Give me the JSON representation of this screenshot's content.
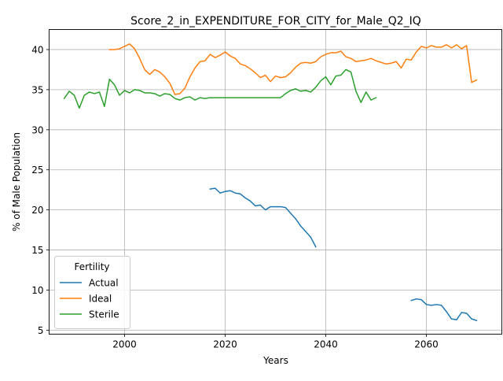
{
  "chart_data": {
    "type": "line",
    "title": "Score_2_in_EXPENDITURE_FOR_CITY_for_Male_Q2_IQ",
    "xlabel": "Years",
    "ylabel": "% of Male Population",
    "xlim": [
      1985,
      2075
    ],
    "ylim": [
      4.5,
      42.5
    ],
    "xticks": [
      2000,
      2020,
      2040,
      2060
    ],
    "yticks": [
      5,
      10,
      15,
      20,
      25,
      30,
      35,
      40
    ],
    "grid": true,
    "legend": {
      "title": "Fertility",
      "placement": "lower-left"
    },
    "series": [
      {
        "name": "Actual",
        "color": "#1f77b4",
        "x": [
          2017,
          2018,
          2019,
          2020,
          2021,
          2022,
          2023,
          2024,
          2025,
          2026,
          2027,
          2028,
          2029,
          2030,
          2031,
          2032,
          2033,
          2034,
          2035,
          2036,
          2037,
          2038,
          2057,
          2058,
          2059,
          2060,
          2061,
          2062,
          2063,
          2064,
          2065,
          2066,
          2067,
          2068,
          2069,
          2070
        ],
        "y": [
          22.6,
          22.7,
          22.1,
          22.3,
          22.4,
          22.1,
          22.0,
          21.5,
          21.1,
          20.5,
          20.6,
          20.0,
          20.4,
          20.4,
          20.4,
          20.3,
          19.6,
          18.9,
          18.0,
          17.3,
          16.6,
          15.4,
          8.7,
          8.9,
          8.8,
          8.2,
          8.1,
          8.2,
          8.1,
          7.3,
          6.4,
          6.3,
          7.2,
          7.1,
          6.4,
          6.2
        ]
      },
      {
        "name": "Ideal",
        "color": "#ff7f0e",
        "x": [
          1997,
          1998,
          1999,
          2000,
          2001,
          2002,
          2003,
          2004,
          2005,
          2006,
          2007,
          2008,
          2009,
          2010,
          2011,
          2012,
          2013,
          2014,
          2015,
          2016,
          2017,
          2018,
          2019,
          2020,
          2021,
          2022,
          2023,
          2024,
          2025,
          2026,
          2027,
          2028,
          2029,
          2030,
          2031,
          2032,
          2033,
          2034,
          2035,
          2036,
          2037,
          2038,
          2039,
          2040,
          2041,
          2042,
          2043,
          2044,
          2045,
          2046,
          2047,
          2048,
          2049,
          2050,
          2051,
          2052,
          2053,
          2054,
          2055,
          2056,
          2057,
          2058,
          2059,
          2060,
          2061,
          2062,
          2063,
          2064,
          2065,
          2066,
          2067,
          2068,
          2069,
          2070
        ],
        "y": [
          40.0,
          40.0,
          40.1,
          40.4,
          40.7,
          40.1,
          38.9,
          37.5,
          36.9,
          37.5,
          37.2,
          36.6,
          35.8,
          34.4,
          34.5,
          35.2,
          36.6,
          37.7,
          38.5,
          38.6,
          39.4,
          39.0,
          39.3,
          39.7,
          39.2,
          38.9,
          38.2,
          38.0,
          37.6,
          37.1,
          36.5,
          36.8,
          36.0,
          36.7,
          36.5,
          36.6,
          37.1,
          37.8,
          38.3,
          38.4,
          38.3,
          38.5,
          39.1,
          39.4,
          39.6,
          39.6,
          39.8,
          39.1,
          38.9,
          38.5,
          38.6,
          38.7,
          38.9,
          38.6,
          38.4,
          38.2,
          38.3,
          38.5,
          37.7,
          38.8,
          38.7,
          39.7,
          40.4,
          40.2,
          40.5,
          40.3,
          40.3,
          40.6,
          40.2,
          40.6,
          40.1,
          40.5,
          35.9,
          36.2
        ]
      },
      {
        "name": "Sterile",
        "color": "#2ca02c",
        "x": [
          1988,
          1989,
          1990,
          1991,
          1992,
          1993,
          1994,
          1995,
          1996,
          1997,
          1998,
          1999,
          2000,
          2001,
          2002,
          2003,
          2004,
          2005,
          2006,
          2007,
          2008,
          2009,
          2010,
          2011,
          2012,
          2013,
          2014,
          2015,
          2016,
          2017,
          2018,
          2019,
          2020,
          2021,
          2022,
          2023,
          2024,
          2025,
          2026,
          2027,
          2028,
          2029,
          2030,
          2031,
          2032,
          2033,
          2034,
          2035,
          2036,
          2037,
          2038,
          2039,
          2040,
          2041,
          2042,
          2043,
          2044,
          2045,
          2046,
          2047,
          2048,
          2049,
          2050
        ],
        "y": [
          33.9,
          34.8,
          34.3,
          32.7,
          34.3,
          34.7,
          34.5,
          34.7,
          32.9,
          36.3,
          35.6,
          34.3,
          34.9,
          34.6,
          35.0,
          34.9,
          34.6,
          34.6,
          34.5,
          34.2,
          34.5,
          34.4,
          33.9,
          33.7,
          34.0,
          34.1,
          33.7,
          34.0,
          33.9,
          34.0,
          34.0,
          34.0,
          34.0,
          34.0,
          34.0,
          34.0,
          34.0,
          34.0,
          34.0,
          34.0,
          34.0,
          34.0,
          34.0,
          34.0,
          34.5,
          34.9,
          35.1,
          34.8,
          34.9,
          34.7,
          35.3,
          36.1,
          36.6,
          35.6,
          36.7,
          36.8,
          37.5,
          37.2,
          34.8,
          33.4,
          34.7,
          33.7,
          34.0
        ]
      }
    ]
  }
}
